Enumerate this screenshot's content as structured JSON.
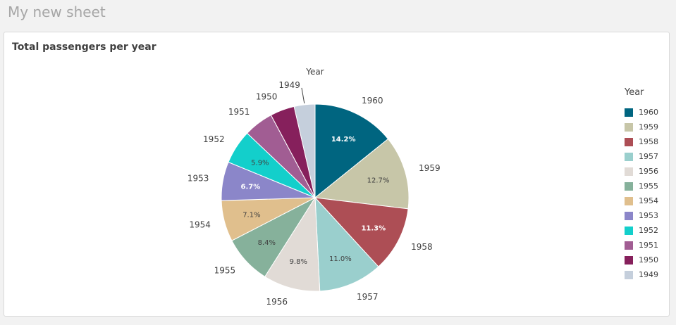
{
  "sheet": {
    "title": "My new sheet"
  },
  "chart_data": {
    "type": "pie",
    "title": "Total passengers per year",
    "dimension_label": "Year",
    "legend_title": "Year",
    "legend_position": "right",
    "slices": [
      {
        "label": "1960",
        "value": 14.2,
        "pct_text": "14.2%",
        "color": "#006580",
        "pct_color": "#ffffff",
        "pct_bold": true
      },
      {
        "label": "1959",
        "value": 12.7,
        "pct_text": "12.7%",
        "color": "#c7c6a8",
        "pct_color": "#404040",
        "pct_bold": false
      },
      {
        "label": "1958",
        "value": 11.3,
        "pct_text": "11.3%",
        "color": "#ad4e55",
        "pct_color": "#ffffff",
        "pct_bold": true
      },
      {
        "label": "1957",
        "value": 11.0,
        "pct_text": "11.0%",
        "color": "#9acfcd",
        "pct_color": "#404040",
        "pct_bold": false
      },
      {
        "label": "1956",
        "value": 9.8,
        "pct_text": "9.8%",
        "color": "#e1dbd6",
        "pct_color": "#404040",
        "pct_bold": false
      },
      {
        "label": "1955",
        "value": 8.4,
        "pct_text": "8.4%",
        "color": "#86b19b",
        "pct_color": "#404040",
        "pct_bold": false
      },
      {
        "label": "1954",
        "value": 7.1,
        "pct_text": "7.1%",
        "color": "#e0bf8d",
        "pct_color": "#404040",
        "pct_bold": false
      },
      {
        "label": "1953",
        "value": 6.7,
        "pct_text": "6.7%",
        "color": "#8b86c9",
        "pct_color": "#ffffff",
        "pct_bold": true
      },
      {
        "label": "1952",
        "value": 5.9,
        "pct_text": "5.9%",
        "color": "#13cfcb",
        "pct_color": "#404040",
        "pct_bold": false
      },
      {
        "label": "1951",
        "value": 5.1,
        "pct_text": "",
        "color": "#a15d93",
        "pct_color": "#404040",
        "pct_bold": false
      },
      {
        "label": "1950",
        "value": 4.2,
        "pct_text": "",
        "color": "#86205c",
        "pct_color": "#404040",
        "pct_bold": false
      },
      {
        "label": "1949",
        "value": 3.6,
        "pct_text": "",
        "color": "#c5cfdc",
        "pct_color": "#404040",
        "pct_bold": false
      }
    ]
  }
}
